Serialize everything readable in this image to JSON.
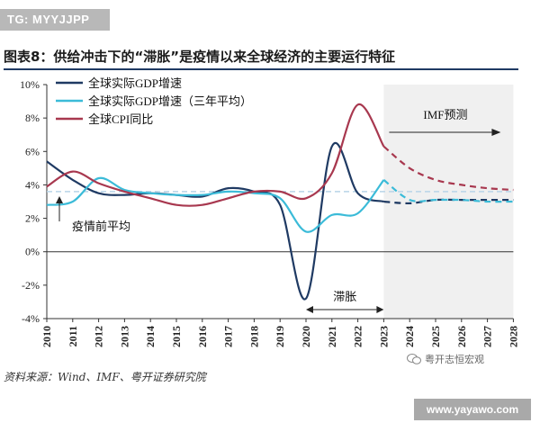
{
  "watermark_top": "TG: MYYJJPP",
  "figure_title": "图表8：供给冲击下的“滞胀”是疫情以来全球经济的主要运行特征",
  "source": "资料来源：Wind、IMF、粤开证券研究院",
  "wechat_label": "粤开志恒宏观",
  "site_watermark": "www.yayawo.com",
  "colors": {
    "gdp": "#1f3a63",
    "gdp_avg": "#3bbbd8",
    "cpi": "#a8384f",
    "imf_shade": "#f0f0f0",
    "avg_line": "#b8d4e8"
  },
  "chart_data": {
    "type": "line",
    "title": "",
    "xlabel": "",
    "ylabel": "",
    "x": [
      2010,
      2011,
      2012,
      2013,
      2014,
      2015,
      2016,
      2017,
      2018,
      2019,
      2020,
      2021,
      2022,
      2023,
      2024,
      2025,
      2026,
      2027,
      2028
    ],
    "ylim": [
      -4,
      10
    ],
    "yticks": [
      -4,
      -2,
      0,
      2,
      4,
      6,
      8,
      10
    ],
    "ytick_labels": [
      "-4%",
      "-2%",
      "0%",
      "2%",
      "4%",
      "6%",
      "8%",
      "10%"
    ],
    "xtick_labels": [
      "2010",
      "2011",
      "2012",
      "2013",
      "2014",
      "2015",
      "2016",
      "2017",
      "2018",
      "2019",
      "2020",
      "2021",
      "2022",
      "2023",
      "2024",
      "2025",
      "2026",
      "2027",
      "2028"
    ],
    "grid": false,
    "legend": "top-left",
    "forecast_start": 2023,
    "series": [
      {
        "name": "全球实际GDP增速",
        "values": [
          5.4,
          4.3,
          3.5,
          3.4,
          3.5,
          3.4,
          3.3,
          3.8,
          3.6,
          2.8,
          -2.8,
          6.3,
          3.5,
          3.0,
          2.9,
          3.1,
          3.1,
          3.1,
          3.1
        ]
      },
      {
        "name": "全球实际GDP增速（三年平均）",
        "values": [
          2.8,
          3.0,
          4.4,
          3.7,
          3.5,
          3.4,
          3.4,
          3.6,
          3.5,
          3.2,
          1.2,
          2.2,
          2.3,
          4.3,
          3.1,
          3.1,
          3.1,
          3.0,
          3.0
        ]
      },
      {
        "name": "全球CPI同比",
        "values": [
          3.9,
          4.8,
          4.1,
          3.6,
          3.2,
          2.8,
          2.8,
          3.2,
          3.6,
          3.6,
          3.2,
          4.7,
          8.8,
          6.3,
          5.0,
          4.3,
          4.0,
          3.8,
          3.7
        ]
      }
    ],
    "average_line": {
      "label": "疫情前平均",
      "value": 3.6
    },
    "annotations": {
      "imf_label": "IMF预测",
      "stagflation_label": "滞胀",
      "stagflation_range": [
        2020,
        2023
      ]
    }
  }
}
